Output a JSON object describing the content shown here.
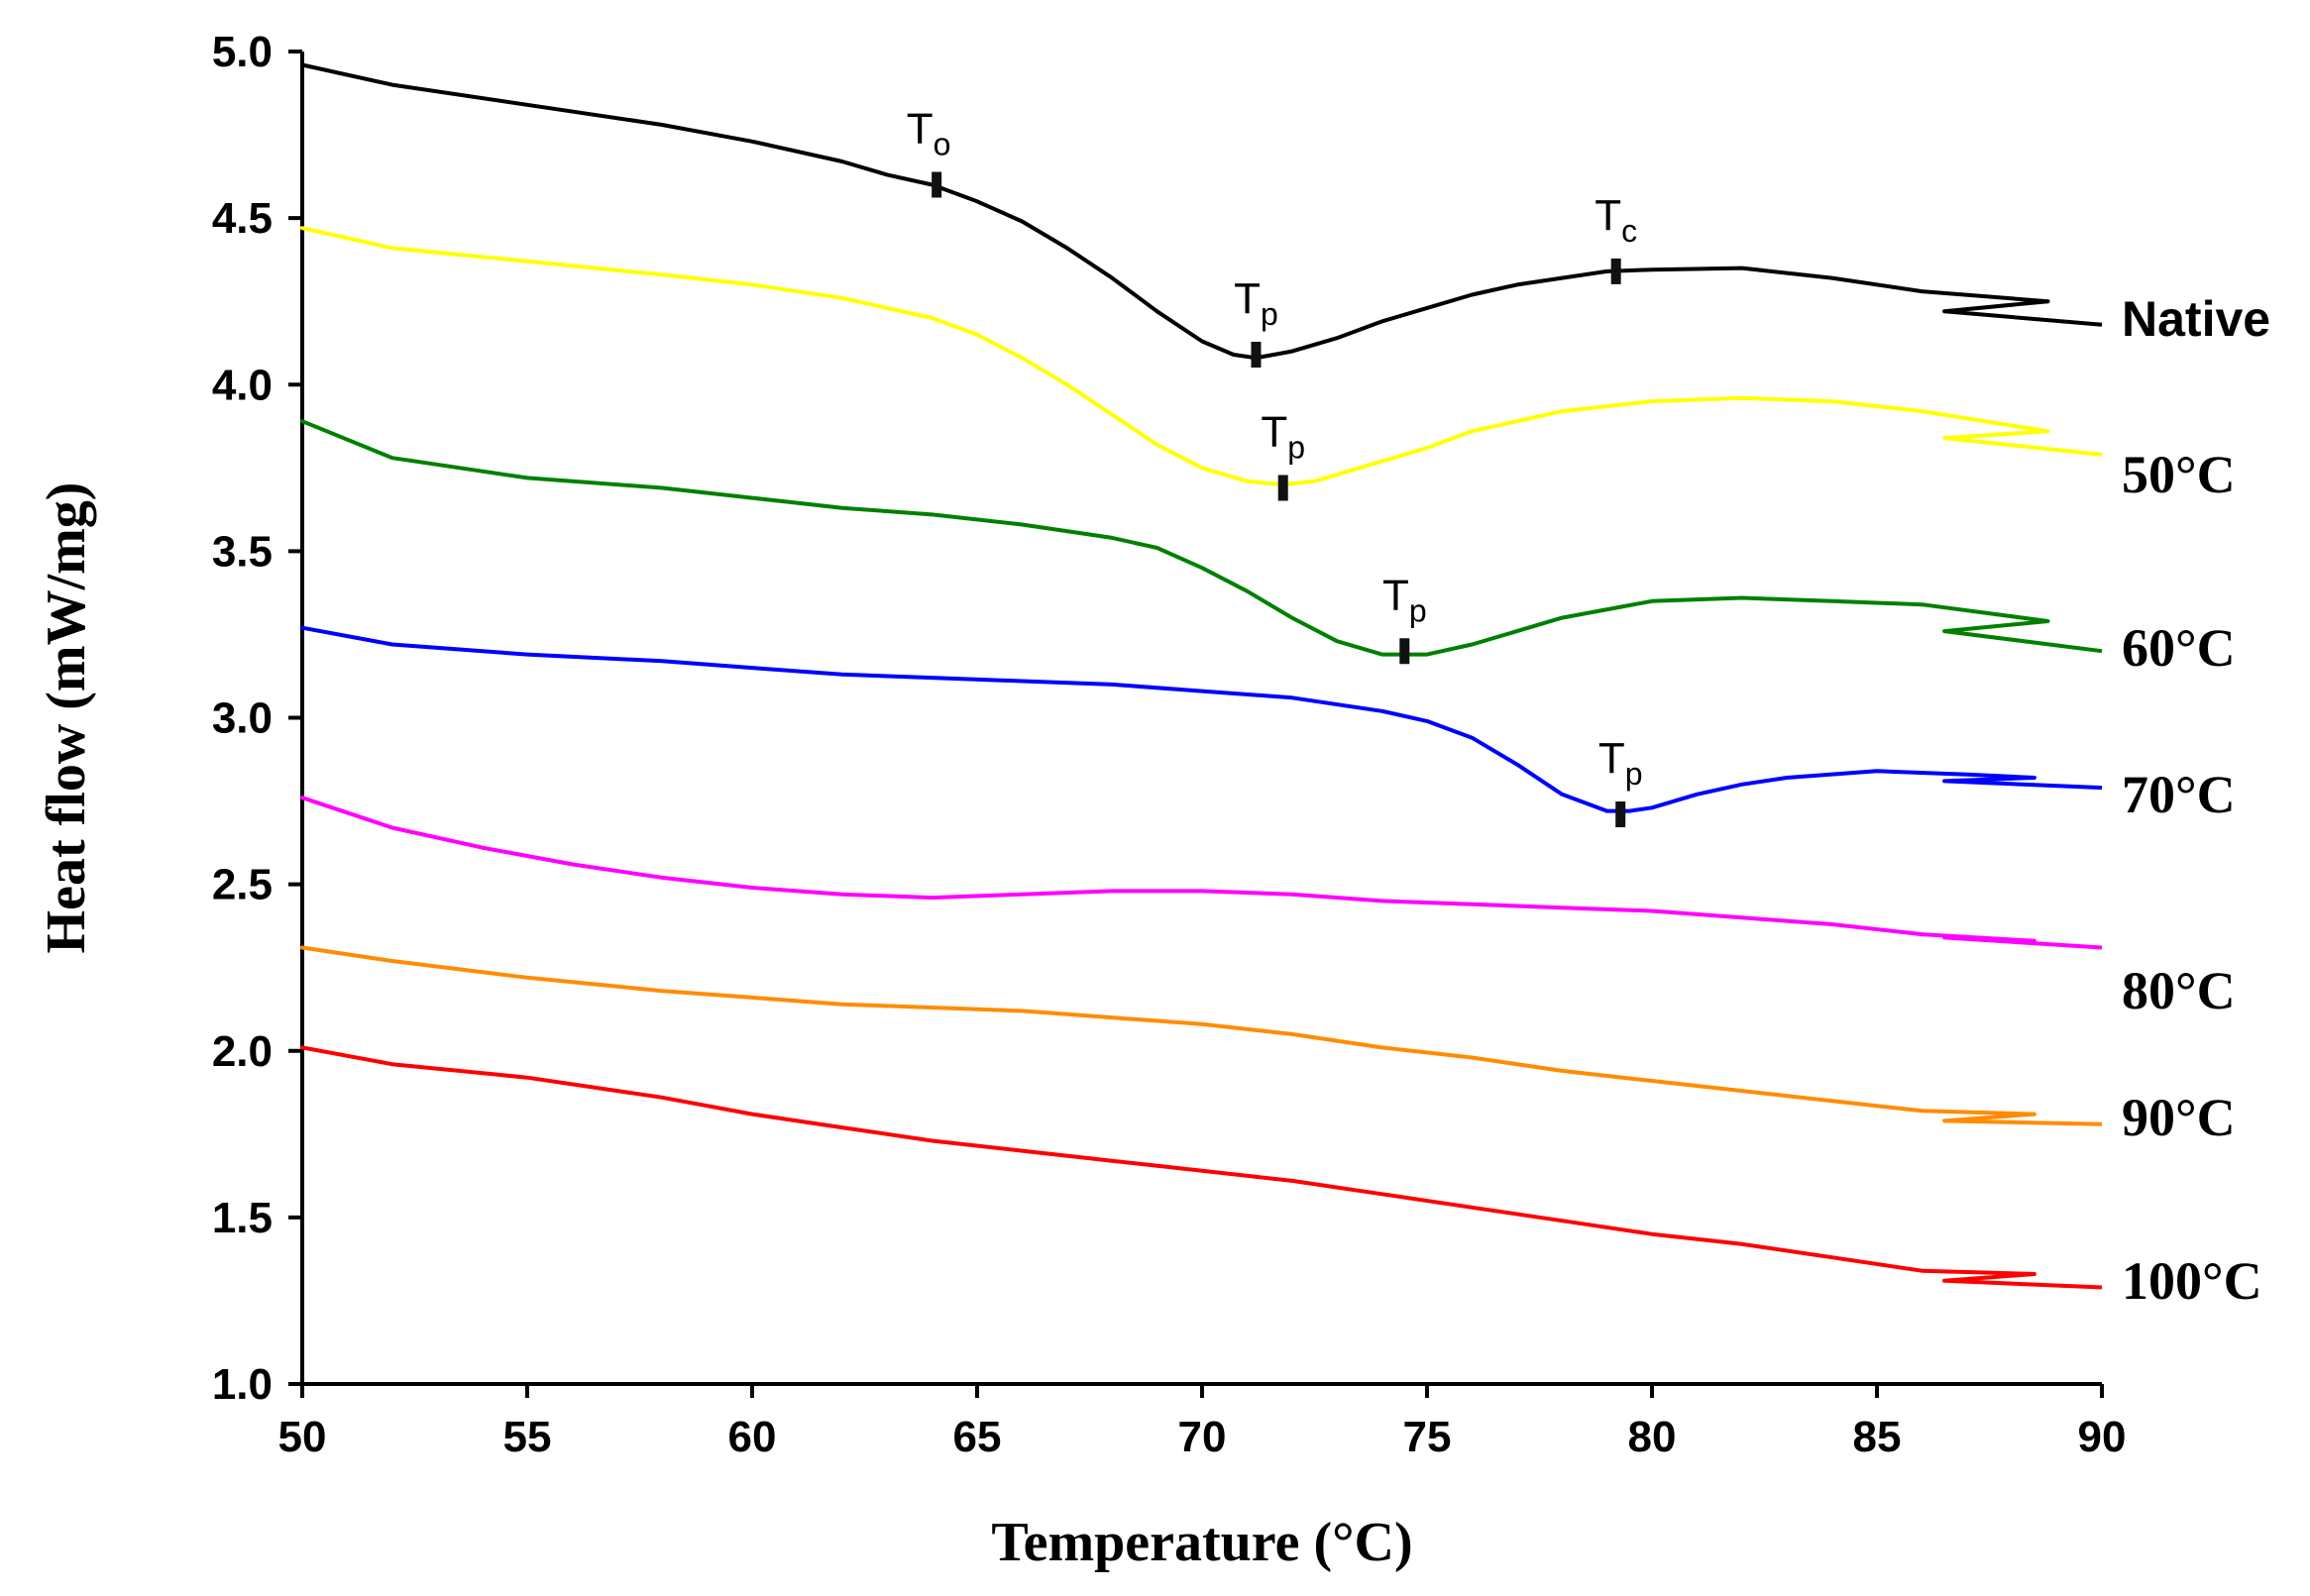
{
  "chart_data": {
    "type": "line",
    "title": "",
    "xlabel": "Temperature (°C)",
    "ylabel": "Heat flow (mW/mg)",
    "xlim": [
      50,
      90
    ],
    "ylim": [
      1.0,
      5.0
    ],
    "xticks": [
      50,
      55,
      60,
      65,
      70,
      75,
      80,
      85,
      90
    ],
    "yticks": [
      1.0,
      1.5,
      2.0,
      2.5,
      3.0,
      3.5,
      4.0,
      4.5,
      5.0
    ],
    "x_tick_labels": [
      "50",
      "55",
      "60",
      "65",
      "70",
      "75",
      "80",
      "85",
      "90"
    ],
    "y_tick_labels": [
      "1.0",
      "1.5",
      "2.0",
      "2.5",
      "3.0",
      "3.5",
      "4.0",
      "4.5",
      "5.0"
    ],
    "grid": false,
    "series": [
      {
        "name": "Native",
        "color": "#000000",
        "x": [
          50,
          52,
          55,
          58,
          60,
          62,
          63,
          64,
          65,
          66,
          67,
          68,
          69,
          70,
          70.7,
          71.2,
          72,
          73,
          74,
          75,
          76,
          77,
          78,
          79,
          80,
          82,
          84,
          86,
          88.8
        ],
        "y": [
          4.96,
          4.9,
          4.84,
          4.78,
          4.73,
          4.67,
          4.63,
          4.6,
          4.55,
          4.49,
          4.41,
          4.32,
          4.22,
          4.13,
          4.09,
          4.08,
          4.1,
          4.14,
          4.19,
          4.23,
          4.27,
          4.3,
          4.32,
          4.34,
          4.345,
          4.35,
          4.32,
          4.28,
          4.25
        ],
        "tail": {
          "x": [
            88.8,
            86.5,
            90
          ],
          "y": [
            4.25,
            4.22,
            4.18
          ]
        }
      },
      {
        "name": "50°C",
        "color": "#ffff00",
        "x": [
          50,
          52,
          55,
          58,
          60,
          62,
          64,
          65,
          66,
          67,
          68,
          69,
          70,
          71,
          71.8,
          72.5,
          73.5,
          75,
          76,
          78,
          80,
          82,
          84,
          86,
          88.8
        ],
        "y": [
          4.47,
          4.41,
          4.37,
          4.33,
          4.3,
          4.26,
          4.2,
          4.15,
          4.08,
          4.0,
          3.91,
          3.82,
          3.75,
          3.71,
          3.7,
          3.71,
          3.75,
          3.81,
          3.86,
          3.92,
          3.95,
          3.96,
          3.95,
          3.92,
          3.86
        ],
        "tail": {
          "x": [
            88.8,
            86.5,
            90
          ],
          "y": [
            3.86,
            3.84,
            3.79
          ]
        }
      },
      {
        "name": "60°C",
        "color": "#008000",
        "x": [
          50,
          52,
          55,
          58,
          60,
          62,
          64,
          66,
          68,
          69,
          70,
          71,
          72,
          73,
          74,
          74.5,
          75,
          76,
          77,
          78,
          80,
          82,
          84,
          86,
          88.8
        ],
        "y": [
          3.89,
          3.78,
          3.72,
          3.69,
          3.66,
          3.63,
          3.61,
          3.58,
          3.54,
          3.51,
          3.45,
          3.38,
          3.3,
          3.23,
          3.19,
          3.19,
          3.19,
          3.22,
          3.26,
          3.3,
          3.35,
          3.36,
          3.35,
          3.34,
          3.29
        ],
        "tail": {
          "x": [
            88.8,
            86.5,
            90
          ],
          "y": [
            3.29,
            3.26,
            3.2
          ]
        }
      },
      {
        "name": "70°C",
        "color": "#0000ff",
        "x": [
          50,
          52,
          55,
          58,
          60,
          62,
          64,
          66,
          68,
          70,
          72,
          74,
          75,
          76,
          77,
          78,
          79,
          79.5,
          80,
          81,
          82,
          83,
          85,
          87,
          88.5
        ],
        "y": [
          3.27,
          3.22,
          3.19,
          3.17,
          3.15,
          3.13,
          3.12,
          3.11,
          3.1,
          3.08,
          3.06,
          3.02,
          2.99,
          2.94,
          2.86,
          2.77,
          2.72,
          2.72,
          2.73,
          2.77,
          2.8,
          2.82,
          2.84,
          2.83,
          2.82
        ],
        "tail": {
          "x": [
            88.5,
            86.5,
            90
          ],
          "y": [
            2.82,
            2.81,
            2.79
          ]
        }
      },
      {
        "name": "80°C",
        "color": "#ff00ff",
        "x": [
          50,
          52,
          54,
          56,
          58,
          60,
          62,
          64,
          66,
          68,
          70,
          72,
          74,
          76,
          78,
          80,
          82,
          84,
          86,
          88.5
        ],
        "y": [
          2.76,
          2.67,
          2.61,
          2.56,
          2.52,
          2.49,
          2.47,
          2.46,
          2.47,
          2.48,
          2.48,
          2.47,
          2.45,
          2.44,
          2.43,
          2.42,
          2.4,
          2.38,
          2.35,
          2.33
        ],
        "tail": {
          "x": [
            88.5,
            86.5,
            90
          ],
          "y": [
            2.33,
            2.34,
            2.31
          ]
        }
      },
      {
        "name": "90°C",
        "color": "#ff8c00",
        "x": [
          50,
          52,
          55,
          58,
          60,
          62,
          64,
          66,
          68,
          70,
          72,
          74,
          76,
          78,
          80,
          82,
          84,
          86,
          88.5
        ],
        "y": [
          2.31,
          2.27,
          2.22,
          2.18,
          2.16,
          2.14,
          2.13,
          2.12,
          2.1,
          2.08,
          2.05,
          2.01,
          1.98,
          1.94,
          1.91,
          1.88,
          1.85,
          1.82,
          1.81
        ],
        "tail": {
          "x": [
            88.5,
            86.5,
            90
          ],
          "y": [
            1.81,
            1.79,
            1.78
          ]
        }
      },
      {
        "name": "100°C",
        "color": "#ff0000",
        "x": [
          50,
          52,
          55,
          58,
          60,
          62,
          64,
          66,
          68,
          70,
          72,
          74,
          76,
          78,
          80,
          82,
          84,
          86,
          88.5
        ],
        "y": [
          2.01,
          1.96,
          1.92,
          1.86,
          1.81,
          1.77,
          1.73,
          1.7,
          1.67,
          1.64,
          1.61,
          1.57,
          1.53,
          1.49,
          1.45,
          1.42,
          1.38,
          1.34,
          1.33
        ],
        "tail": {
          "x": [
            88.5,
            86.5,
            90
          ],
          "y": [
            1.33,
            1.31,
            1.29
          ]
        }
      }
    ],
    "series_labels": [
      {
        "text": "Native",
        "value_y": 4.2
      },
      {
        "text": "50°C",
        "value_y": 3.73
      },
      {
        "text": "60°C",
        "value_y": 3.21
      },
      {
        "text": "70°C",
        "value_y": 2.77
      },
      {
        "text": "80°C",
        "value_y": 2.18
      },
      {
        "text": "90°C",
        "value_y": 1.8
      },
      {
        "text": "100°C",
        "value_y": 1.31
      }
    ],
    "annotations": [
      {
        "main": "T",
        "sub": "o",
        "series": "Native",
        "x": 64.1,
        "y": 4.6
      },
      {
        "main": "T",
        "sub": "p",
        "series": "Native",
        "x": 71.2,
        "y": 4.09
      },
      {
        "main": "T",
        "sub": "c",
        "series": "Native",
        "x": 79.2,
        "y": 4.34
      },
      {
        "main": "T",
        "sub": "p",
        "series": "50°C",
        "x": 71.8,
        "y": 3.69
      },
      {
        "main": "T",
        "sub": "p",
        "series": "60°C",
        "x": 74.5,
        "y": 3.2
      },
      {
        "main": "T",
        "sub": "p",
        "series": "70°C",
        "x": 79.3,
        "y": 2.71
      }
    ]
  }
}
